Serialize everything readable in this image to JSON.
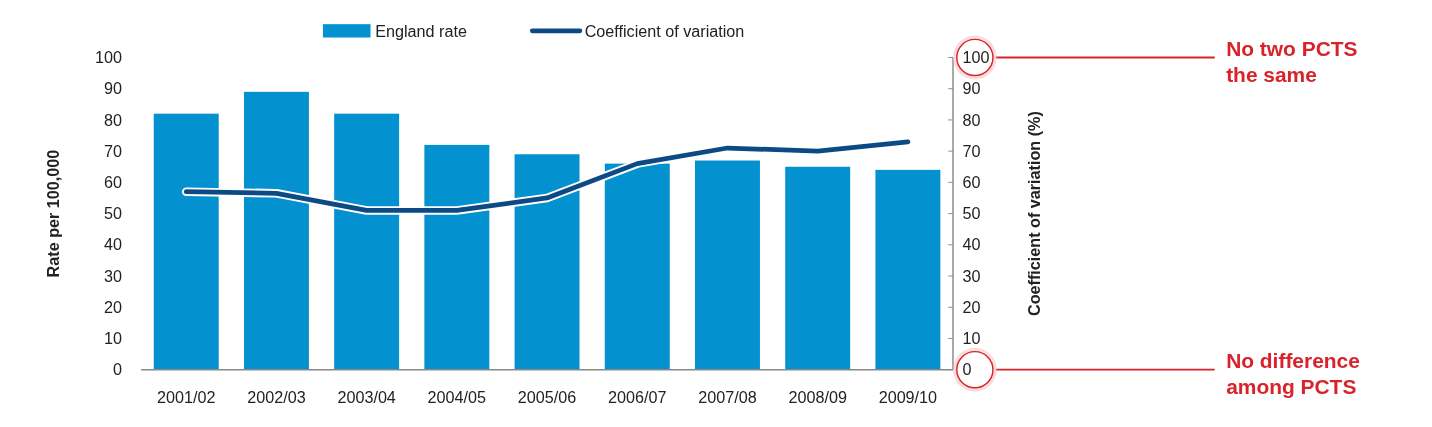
{
  "chart_data": {
    "type": "bar",
    "categories": [
      "2001/02",
      "2002/03",
      "2003/04",
      "2004/05",
      "2005/06",
      "2006/07",
      "2007/08",
      "2008/09",
      "2009/10"
    ],
    "series": [
      {
        "name": "England rate",
        "color": "#0391cf",
        "values": [
          82,
          89,
          82,
          72,
          69,
          66,
          67,
          65,
          64
        ]
      },
      {
        "name": "Coefficient of variation",
        "type": "line",
        "axis": "y2",
        "color": "#0c4a85",
        "values": [
          57,
          56.5,
          51,
          51,
          55,
          66,
          71,
          70,
          73
        ]
      }
    ],
    "ylabel": "Rate per 100,000",
    "y2label": "Coefficient of variation (%)",
    "ylim": [
      0,
      100
    ],
    "yticks": [
      0,
      10,
      20,
      30,
      40,
      50,
      60,
      70,
      80,
      90,
      100
    ],
    "y2lim": [
      0,
      100
    ],
    "y2ticks": [
      0,
      10,
      20,
      30,
      40,
      50,
      60,
      70,
      80,
      90,
      100
    ],
    "legend": "top",
    "grid": false,
    "annotations": [
      "No two PCTS the same",
      "No difference among PCTS"
    ]
  }
}
